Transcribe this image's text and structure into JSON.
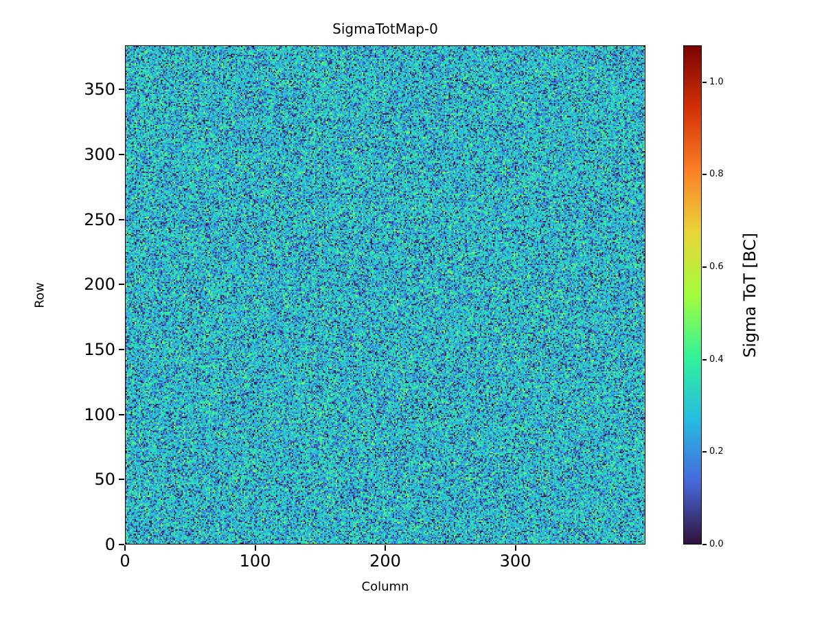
{
  "figure": {
    "background": "#ffffff"
  },
  "chart_data": {
    "type": "heatmap",
    "title": "SigmaTotMap-0",
    "xlabel": "Column",
    "ylabel": "Row",
    "colorbar_label": "Sigma ToT [BC]",
    "n_cols": 400,
    "n_rows": 384,
    "xlim": [
      0,
      400
    ],
    "ylim": [
      0,
      384
    ],
    "vmin": 0.0,
    "vmax": 1.08,
    "x_ticks": [
      0,
      100,
      200,
      300
    ],
    "y_ticks": [
      0,
      50,
      100,
      150,
      200,
      250,
      300,
      350
    ],
    "colorbar_ticks": [
      {
        "value": 0.0,
        "label": "0.0"
      },
      {
        "value": 0.2,
        "label": "0.2"
      },
      {
        "value": 0.4,
        "label": "0.4"
      },
      {
        "value": 0.6,
        "label": "0.6"
      },
      {
        "value": 0.8,
        "label": "0.8"
      },
      {
        "value": 1.0,
        "label": "1.0"
      }
    ],
    "grid": false,
    "legend": false,
    "colormap": {
      "name": "turbo",
      "stops": [
        [
          0.0,
          "#30123b"
        ],
        [
          0.125,
          "#4669db"
        ],
        [
          0.25,
          "#26bce1"
        ],
        [
          0.375,
          "#31f299"
        ],
        [
          0.5,
          "#a3fc3c"
        ],
        [
          0.625,
          "#e8d539"
        ],
        [
          0.75,
          "#fb8026"
        ],
        [
          0.875,
          "#d23105"
        ],
        [
          1.0,
          "#7a0403"
        ]
      ]
    },
    "values_summary": {
      "description": "Per-pixel random noise map of Sigma ToT in BC units; dominant teal/cyan-green pixels around 0.25-0.45 BC with scattered dark (near 0) speckles",
      "typical_range": [
        0.15,
        0.5
      ],
      "mean": 0.3,
      "dark_fraction": 0.18
    },
    "noise_model": {
      "seed": 42,
      "gaussian_mean": 0.3,
      "gaussian_sd": 0.09,
      "gaussian_clip": [
        0.12,
        0.65
      ],
      "dark_fraction": 0.18,
      "dark_max": 0.13
    }
  }
}
